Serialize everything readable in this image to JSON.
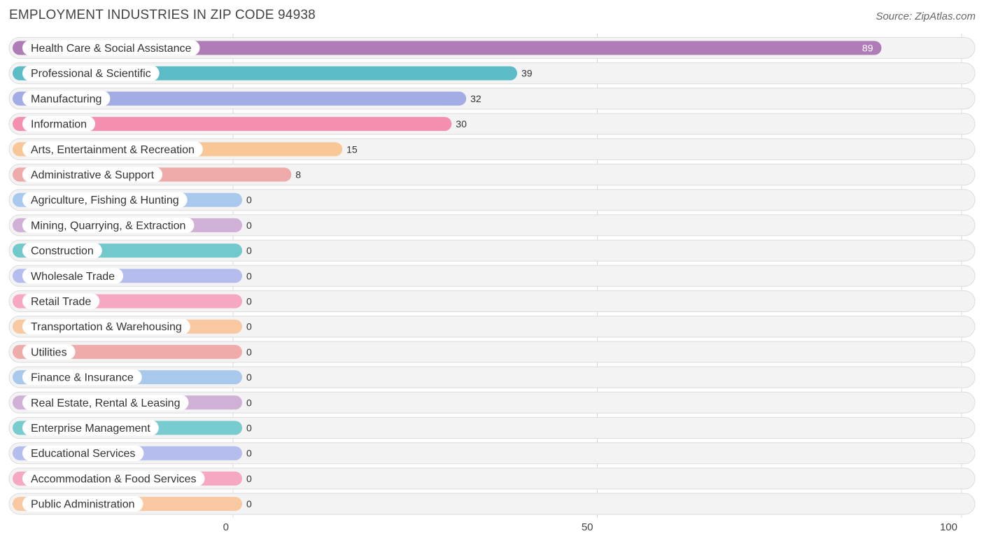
{
  "header": {
    "title": "EMPLOYMENT INDUSTRIES IN ZIP CODE 94938",
    "source": "Source: ZipAtlas.com"
  },
  "chart_data": {
    "type": "bar",
    "orientation": "horizontal",
    "title": "EMPLOYMENT INDUSTRIES IN ZIP CODE 94938",
    "categories": [
      "Health Care & Social Assistance",
      "Professional & Scientific",
      "Manufacturing",
      "Information",
      "Arts, Entertainment & Recreation",
      "Administrative & Support",
      "Agriculture, Fishing & Hunting",
      "Mining, Quarrying, & Extraction",
      "Construction",
      "Wholesale Trade",
      "Retail Trade",
      "Transportation & Warehousing",
      "Utilities",
      "Finance & Insurance",
      "Real Estate, Rental & Leasing",
      "Enterprise Management",
      "Educational Services",
      "Accommodation & Food Services",
      "Public Administration"
    ],
    "values": [
      89,
      39,
      32,
      30,
      15,
      8,
      0,
      0,
      0,
      0,
      0,
      0,
      0,
      0,
      0,
      0,
      0,
      0,
      0
    ],
    "colors": [
      "#b07cb8",
      "#5bbcc8",
      "#a4ace6",
      "#f58fb0",
      "#f8c795",
      "#eea9a9",
      "#a9c8ee",
      "#d0b0d6",
      "#72c9cc",
      "#b5bcee",
      "#f6a8c2",
      "#f8c8a0",
      "#efaaaa",
      "#a9c8ee",
      "#d0b0d6",
      "#78cbcf",
      "#b5bcee",
      "#f6a8c2",
      "#f8c8a0"
    ],
    "xlim": [
      0,
      100
    ],
    "xticks": [
      0,
      50,
      100
    ],
    "grid": true,
    "legend": "none"
  }
}
